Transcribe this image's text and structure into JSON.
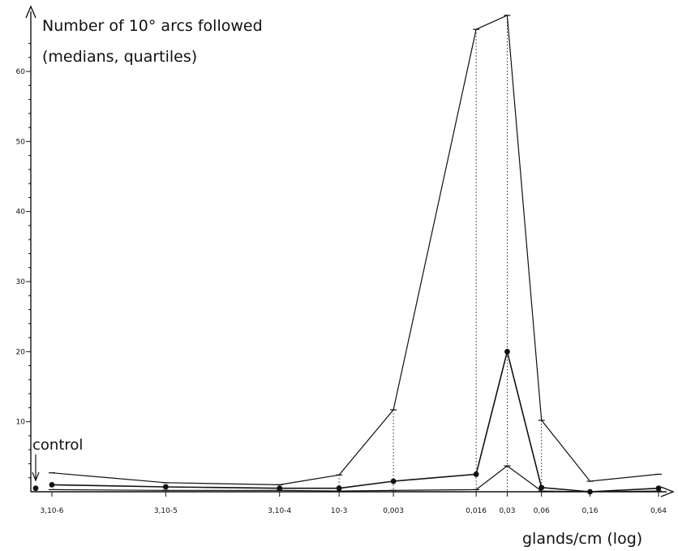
{
  "chart_data": {
    "type": "line",
    "title": [
      "Number of 10° arcs followed",
      "(medians, quartiles)"
    ],
    "xlabel": "glands/cm (log)",
    "ylabel": "",
    "ylim": [
      0,
      70
    ],
    "yticks": [
      10,
      20,
      30,
      40,
      50,
      60
    ],
    "x_scale": "log",
    "categories": [
      "3,10-6",
      "3,10-5",
      "3,10-4",
      "10-3",
      "0,003",
      "0,016",
      "0,03",
      "0,06",
      "0,16",
      "0,64"
    ],
    "x": [
      3e-06,
      3e-05,
      0.0003,
      0.001,
      0.003,
      0.016,
      0.03,
      0.06,
      0.16,
      0.64
    ],
    "series": [
      {
        "values": [
          2.7,
          1.3,
          1.0,
          2.4,
          11.7,
          66.0,
          68.0,
          10.2,
          1.5,
          2.5
        ]
      },
      {
        "values": [
          1.0,
          0.7,
          0.5,
          0.5,
          1.5,
          2.5,
          20.0,
          0.6,
          0.0,
          0.5
        ]
      },
      {
        "values": [
          0.3,
          0.2,
          0.2,
          0.1,
          0.2,
          0.3,
          3.7,
          0.1,
          0.0,
          0.1
        ]
      }
    ],
    "control": {
      "label": "control",
      "median": 0.5,
      "lower": 0.0
    },
    "grid": false,
    "legend": "none",
    "colors": {
      "ink": "#111111",
      "background": "#ffffff"
    }
  }
}
